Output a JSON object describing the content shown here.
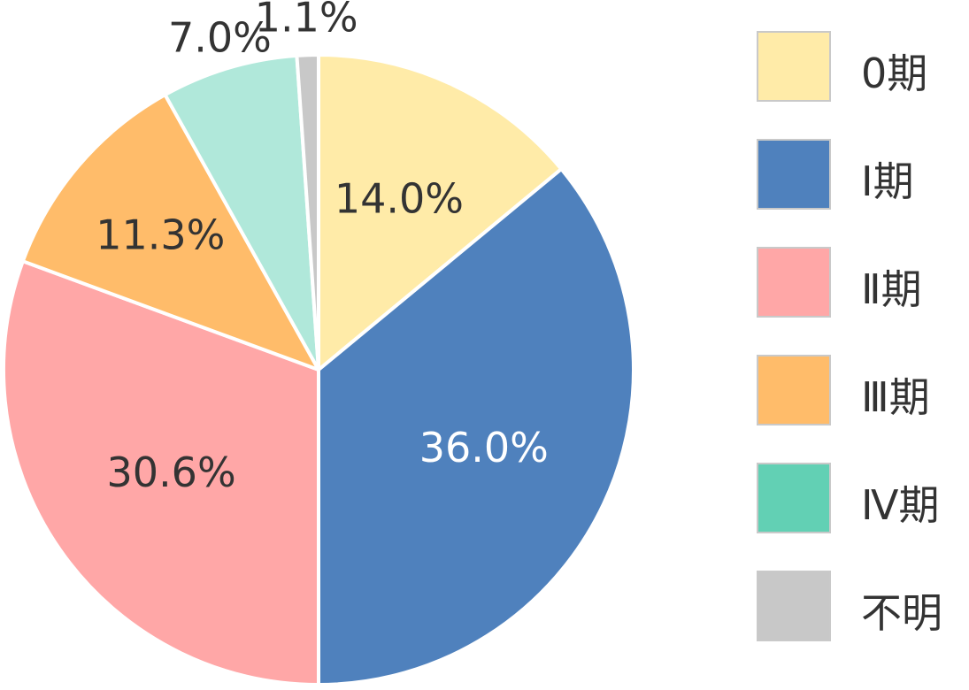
{
  "chart_data": {
    "type": "pie",
    "categories": [
      "0期",
      "Ⅰ期",
      "Ⅱ期",
      "Ⅲ期",
      "Ⅳ期",
      "不明"
    ],
    "values": [
      14.0,
      36.0,
      30.6,
      11.3,
      7.0,
      1.1
    ],
    "labels": [
      "14.0%",
      "36.0%",
      "30.6%",
      "11.3%",
      "7.0%",
      "1.1%"
    ],
    "colors": [
      "#FFEBA8",
      "#4F81BD",
      "#FFA7A7",
      "#FFBC6A",
      "#B0E8DA",
      "#C8C8C8"
    ],
    "legend_colors": [
      "#FFEBA8",
      "#4F81BD",
      "#FFA7A7",
      "#FFBC6A",
      "#62D0B4",
      "#C8C8C8"
    ],
    "label_colors": [
      "#333333",
      "#ffffff",
      "#333333",
      "#333333",
      "#333333",
      "#333333"
    ],
    "start": "12 o'clock",
    "direction": "clockwise",
    "legend_position": "right"
  },
  "legend": {
    "items": [
      {
        "label": "0期"
      },
      {
        "label": "Ⅰ期"
      },
      {
        "label": "Ⅱ期"
      },
      {
        "label": "Ⅲ期"
      },
      {
        "label": "Ⅳ期"
      },
      {
        "label": "不明"
      }
    ]
  }
}
